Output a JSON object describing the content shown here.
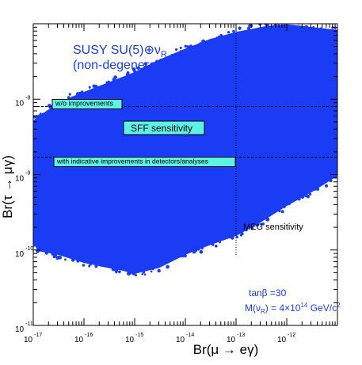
{
  "chart_data": {
    "type": "scatter",
    "title": "SUSY SU(5)⊕ν",
    "title_subscript": "R",
    "subtitle": "(non-degenerate)",
    "xlabel": "Br(μ → eγ)",
    "ylabel": "Br(τ → μγ)",
    "x_scale": "log",
    "y_scale": "log",
    "xlim": [
      1e-17,
      1e-11
    ],
    "ylim": [
      1e-11,
      1e-07
    ],
    "x_ticks": [
      {
        "value": 1e-17,
        "exp": "-17"
      },
      {
        "value": 1e-16,
        "exp": "-16"
      },
      {
        "value": 1e-15,
        "exp": "-15"
      },
      {
        "value": 1e-14,
        "exp": "-14"
      },
      {
        "value": 1e-13,
        "exp": "-13"
      },
      {
        "value": 1e-12,
        "exp": "-12"
      }
    ],
    "y_ticks": [
      {
        "value": 1e-11,
        "exp": "-11"
      },
      {
        "value": 1e-10,
        "exp": "-10"
      },
      {
        "value": 1e-09,
        "exp": "-9"
      },
      {
        "value": 1e-08,
        "exp": "-8"
      }
    ],
    "tick_base": "10",
    "scatter_color": "#1a3cf5",
    "series": [
      {
        "region_upper": [
          [
            1e-17,
            5e-09
          ],
          [
            2e-17,
            7e-09
          ],
          [
            5e-17,
            1e-08
          ],
          [
            1e-16,
            1.2e-08
          ],
          [
            3e-16,
            1.6e-08
          ],
          [
            1e-15,
            2.2e-08
          ],
          [
            3e-15,
            3.2e-08
          ],
          [
            1e-14,
            4.5e-08
          ],
          [
            3e-14,
            6e-08
          ],
          [
            1e-13,
            7.5e-08
          ],
          [
            4e-13,
            9e-08
          ],
          [
            1e-12,
            9.5e-08
          ],
          [
            1e-11,
            8e-08
          ]
        ],
        "region_lower": [
          [
            1e-11,
            1e-09
          ],
          [
            3e-12,
            6e-10
          ],
          [
            1e-12,
            4e-10
          ],
          [
            3e-13,
            2.4e-10
          ],
          [
            1e-13,
            1.6e-10
          ],
          [
            3e-14,
            1.2e-10
          ],
          [
            1e-14,
            9e-11
          ],
          [
            3e-15,
            6e-11
          ],
          [
            1e-15,
            5e-11
          ],
          [
            6e-16,
            5.5e-11
          ],
          [
            3e-16,
            6e-11
          ],
          [
            1e-16,
            7e-11
          ],
          [
            3e-17,
            9e-11
          ],
          [
            1.3e-17,
            1e-10
          ],
          [
            1e-17,
            1.3e-10
          ]
        ]
      }
    ],
    "reference_lines": [
      {
        "orientation": "horizontal",
        "value": 8e-09,
        "style": "dashed",
        "label": "w/o improvements"
      },
      {
        "orientation": "horizontal",
        "value": 1.7e-09,
        "style": "dashed",
        "label": "with indicative improvements in detectors/analyses"
      },
      {
        "orientation": "vertical",
        "value": 1e-13,
        "style": "dotted",
        "label": "MEG sensitivity"
      }
    ],
    "annotations": {
      "sff_label": "SFF sensitivity",
      "meg_label": "MEG sensitivity",
      "tanbeta": "tanβ =30",
      "mass_prefix": "M(ν",
      "mass_sub": "R",
      "mass_mid": ") = 4×10",
      "mass_exp": "14",
      "mass_unit": " GeV/c",
      "mass_unit_exp": "2"
    },
    "label_box_color": "#5ff0e6",
    "grid": false,
    "legend": "none"
  }
}
